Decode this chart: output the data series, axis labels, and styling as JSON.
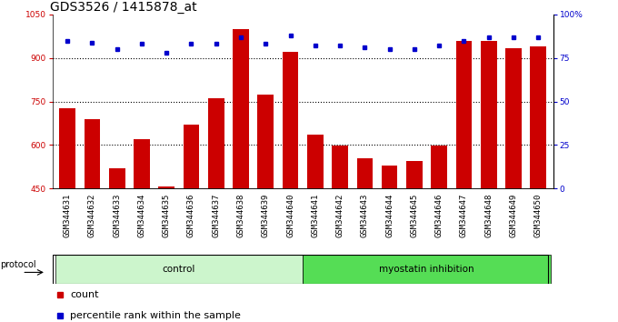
{
  "title": "GDS3526 / 1415878_at",
  "samples": [
    "GSM344631",
    "GSM344632",
    "GSM344633",
    "GSM344634",
    "GSM344635",
    "GSM344636",
    "GSM344637",
    "GSM344638",
    "GSM344639",
    "GSM344640",
    "GSM344641",
    "GSM344642",
    "GSM344643",
    "GSM344644",
    "GSM344645",
    "GSM344646",
    "GSM344647",
    "GSM344648",
    "GSM344649",
    "GSM344650"
  ],
  "counts": [
    725,
    690,
    520,
    620,
    455,
    670,
    760,
    1000,
    775,
    920,
    635,
    598,
    555,
    528,
    545,
    598,
    960,
    960,
    935,
    940
  ],
  "percentile_ranks": [
    85,
    84,
    80,
    83,
    78,
    83,
    83,
    87,
    83,
    88,
    82,
    82,
    81,
    80,
    80,
    82,
    85,
    87,
    87,
    87
  ],
  "groups": [
    {
      "label": "control",
      "start": 0,
      "end": 10,
      "color": "#ccf5cc"
    },
    {
      "label": "myostatin inhibition",
      "start": 10,
      "end": 20,
      "color": "#55dd55"
    }
  ],
  "ylim_left": [
    450,
    1050
  ],
  "ylim_right": [
    0,
    100
  ],
  "yticks_left": [
    450,
    600,
    750,
    900,
    1050
  ],
  "yticks_right": [
    0,
    25,
    50,
    75,
    100
  ],
  "bar_color": "#cc0000",
  "dot_color": "#0000cc",
  "grid_color": "#888888",
  "bg_color": "#ffffff",
  "title_fontsize": 10,
  "tick_fontsize": 6.5,
  "legend_fontsize": 8
}
